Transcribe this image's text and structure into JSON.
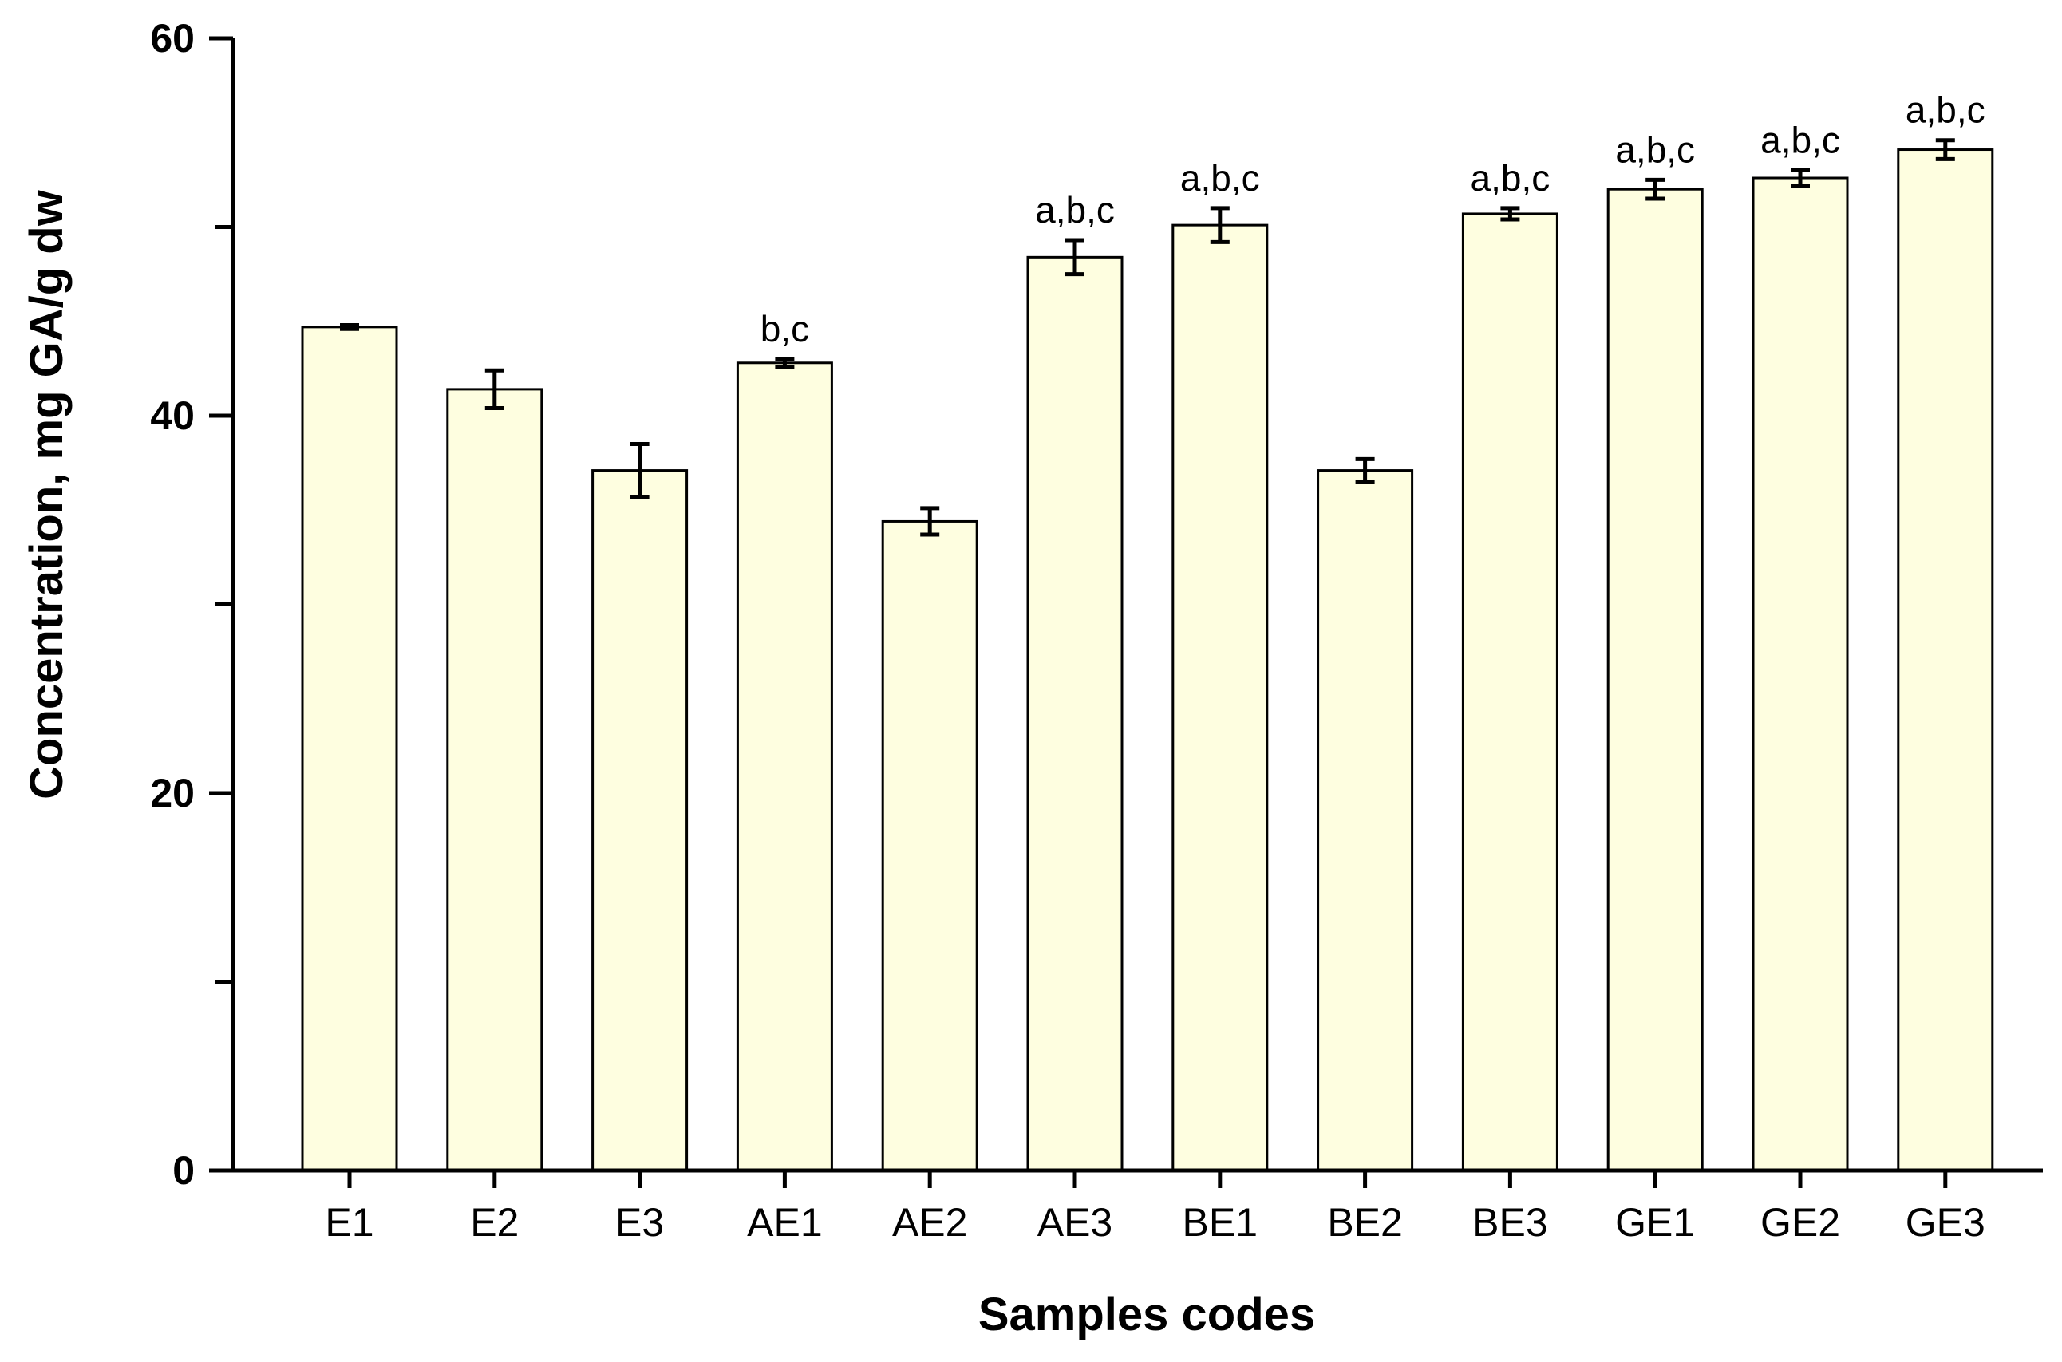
{
  "chart_data": {
    "type": "bar",
    "title": "",
    "xlabel": "Samples codes",
    "ylabel": "Concentration, mg GA/g dw",
    "ylim": [
      0,
      60
    ],
    "yticks": [
      0,
      20,
      40,
      60
    ],
    "yticks_label_color": "#000000",
    "categories": [
      "E1",
      "E2",
      "E3",
      "AE1",
      "AE2",
      "AE3",
      "BE1",
      "BE2",
      "BE3",
      "GE1",
      "GE2",
      "GE3"
    ],
    "values": [
      44.7,
      41.4,
      37.1,
      42.8,
      34.4,
      48.4,
      50.1,
      37.1,
      50.7,
      52.0,
      52.6,
      54.1
    ],
    "errors": [
      0.1,
      1.0,
      1.4,
      0.2,
      0.7,
      0.9,
      0.9,
      0.6,
      0.3,
      0.5,
      0.4,
      0.5
    ],
    "annotations": [
      "",
      "",
      "",
      "b,c",
      "",
      "a,b,c",
      "a,b,c",
      "",
      "a,b,c",
      "a,b,c",
      "a,b,c",
      "a,b,c"
    ],
    "grid": false,
    "bar_fill": "#fefee0",
    "bar_stroke": "#000000"
  }
}
